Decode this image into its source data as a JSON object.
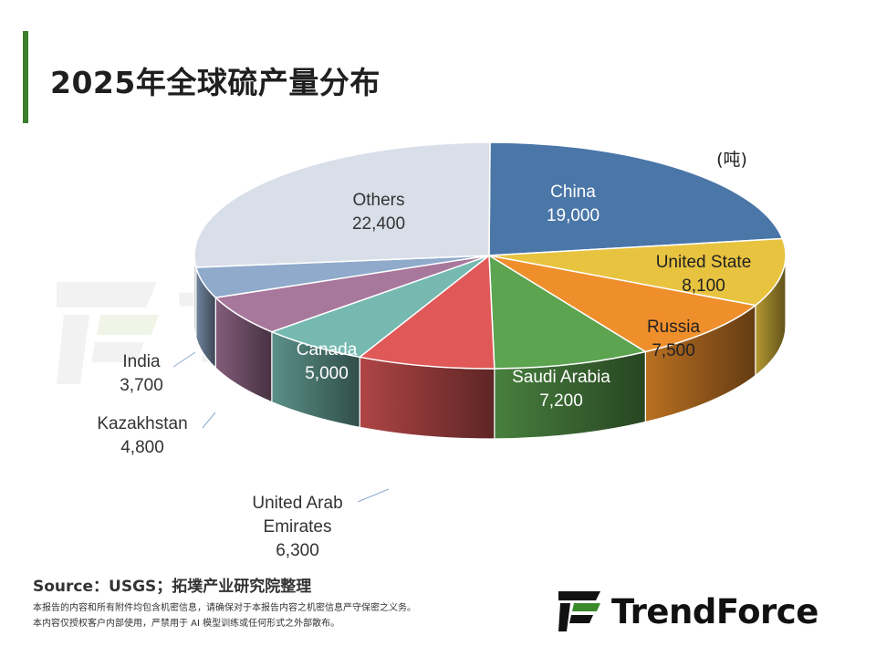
{
  "page": {
    "title": "2025年全球硫产量分布",
    "unit": "(吨)",
    "source": "Source：USGS；拓墣产业研究院整理",
    "disclaimer_line1": "本报告的内容和所有附件均包含机密信息，请确保对于本报告内容之机密信息严守保密之义务。",
    "disclaimer_line2": "本内容仅授权客户内部使用，严禁用于 AI 模型训练或任何形式之外部散布。",
    "logo_text": "TrendForce",
    "watermark_text": "TrendForce",
    "accent_color": "#3a7d2a"
  },
  "chart_data": {
    "type": "pie",
    "title": "2025年全球硫产量分布",
    "unit": "(吨)",
    "slices": [
      {
        "label": "China",
        "value": 19000,
        "value_label": "19,000",
        "color": "#4a76a8"
      },
      {
        "label": "United State",
        "value": 8100,
        "value_label": "8,100",
        "color": "#e8c33f"
      },
      {
        "label": "Russia",
        "value": 7500,
        "value_label": "7,500",
        "color": "#ef8f2c"
      },
      {
        "label": "Saudi Arabia",
        "value": 7200,
        "value_label": "7,200",
        "color": "#5ca450"
      },
      {
        "label": "United Arab Emirates",
        "value": 6300,
        "value_label": "6,300",
        "color": "#e05858"
      },
      {
        "label": "Canada",
        "value": 5000,
        "value_label": "5,000",
        "color": "#75b9b0"
      },
      {
        "label": "Kazakhstan",
        "value": 4800,
        "value_label": "4,800",
        "color": "#a8779c"
      },
      {
        "label": "India",
        "value": 3700,
        "value_label": "3,700",
        "color": "#8faacb"
      },
      {
        "label": "Others",
        "value": 22400,
        "value_label": "22,400",
        "color": "#d9dfe9"
      }
    ]
  }
}
